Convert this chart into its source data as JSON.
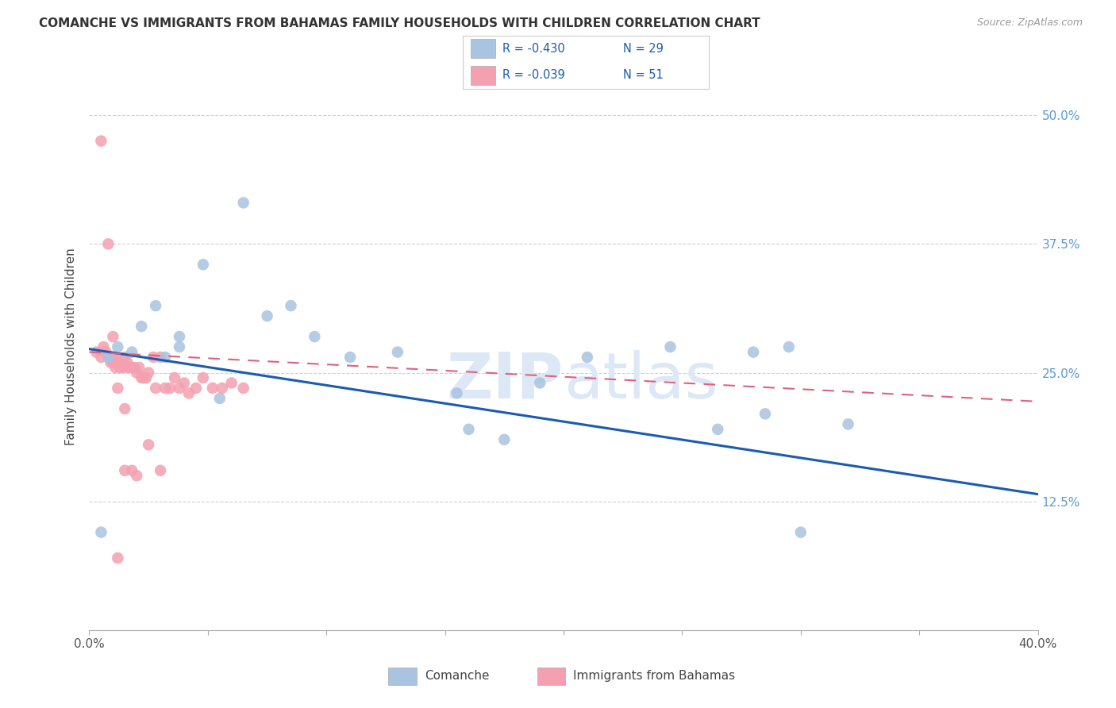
{
  "title": "COMANCHE VS IMMIGRANTS FROM BAHAMAS FAMILY HOUSEHOLDS WITH CHILDREN CORRELATION CHART",
  "source": "Source: ZipAtlas.com",
  "ylabel": "Family Households with Children",
  "ytick_labels": [
    "50.0%",
    "37.5%",
    "25.0%",
    "12.5%"
  ],
  "ytick_values": [
    0.5,
    0.375,
    0.25,
    0.125
  ],
  "xmin": 0.0,
  "xmax": 0.4,
  "ymin": 0.0,
  "ymax": 0.55,
  "legend_r_blue": "-0.430",
  "legend_n_blue": "29",
  "legend_r_pink": "-0.039",
  "legend_n_pink": "51",
  "legend_label_blue": "Comanche",
  "legend_label_pink": "Immigrants from Bahamas",
  "blue_color": "#a8c4e0",
  "pink_color": "#f4a0b0",
  "blue_line_color": "#1a5cb0",
  "pink_line_color": "#e06080",
  "watermark": "ZIPatlas",
  "comanche_x": [
    0.008,
    0.012,
    0.018,
    0.022,
    0.028,
    0.032,
    0.038,
    0.038,
    0.048,
    0.055,
    0.065,
    0.075,
    0.085,
    0.095,
    0.11,
    0.13,
    0.155,
    0.16,
    0.175,
    0.19,
    0.21,
    0.245,
    0.265,
    0.285,
    0.295,
    0.28,
    0.32,
    0.005,
    0.3
  ],
  "comanche_y": [
    0.265,
    0.275,
    0.27,
    0.295,
    0.315,
    0.265,
    0.275,
    0.285,
    0.355,
    0.225,
    0.415,
    0.305,
    0.315,
    0.285,
    0.265,
    0.27,
    0.23,
    0.195,
    0.185,
    0.24,
    0.265,
    0.275,
    0.195,
    0.21,
    0.275,
    0.27,
    0.2,
    0.095,
    0.095
  ],
  "bahamas_x": [
    0.003,
    0.005,
    0.006,
    0.007,
    0.008,
    0.009,
    0.01,
    0.01,
    0.011,
    0.012,
    0.013,
    0.014,
    0.014,
    0.015,
    0.016,
    0.016,
    0.017,
    0.018,
    0.019,
    0.02,
    0.021,
    0.022,
    0.023,
    0.024,
    0.025,
    0.027,
    0.028,
    0.03,
    0.032,
    0.034,
    0.036,
    0.038,
    0.04,
    0.042,
    0.045,
    0.048,
    0.052,
    0.056,
    0.06,
    0.065,
    0.005,
    0.008,
    0.01,
    0.012,
    0.015,
    0.018,
    0.02,
    0.025,
    0.03,
    0.015,
    0.012
  ],
  "bahamas_y": [
    0.27,
    0.265,
    0.275,
    0.27,
    0.265,
    0.26,
    0.265,
    0.26,
    0.255,
    0.265,
    0.255,
    0.26,
    0.255,
    0.265,
    0.26,
    0.255,
    0.255,
    0.255,
    0.255,
    0.25,
    0.255,
    0.245,
    0.245,
    0.245,
    0.25,
    0.265,
    0.235,
    0.265,
    0.235,
    0.235,
    0.245,
    0.235,
    0.24,
    0.23,
    0.235,
    0.245,
    0.235,
    0.235,
    0.24,
    0.235,
    0.475,
    0.375,
    0.285,
    0.235,
    0.215,
    0.155,
    0.15,
    0.18,
    0.155,
    0.155,
    0.07
  ],
  "blue_line_x0": 0.0,
  "blue_line_y0": 0.273,
  "blue_line_x1": 0.4,
  "blue_line_y1": 0.132,
  "pink_line_x0": 0.0,
  "pink_line_y0": 0.27,
  "pink_line_x1": 0.4,
  "pink_line_y1": 0.222
}
